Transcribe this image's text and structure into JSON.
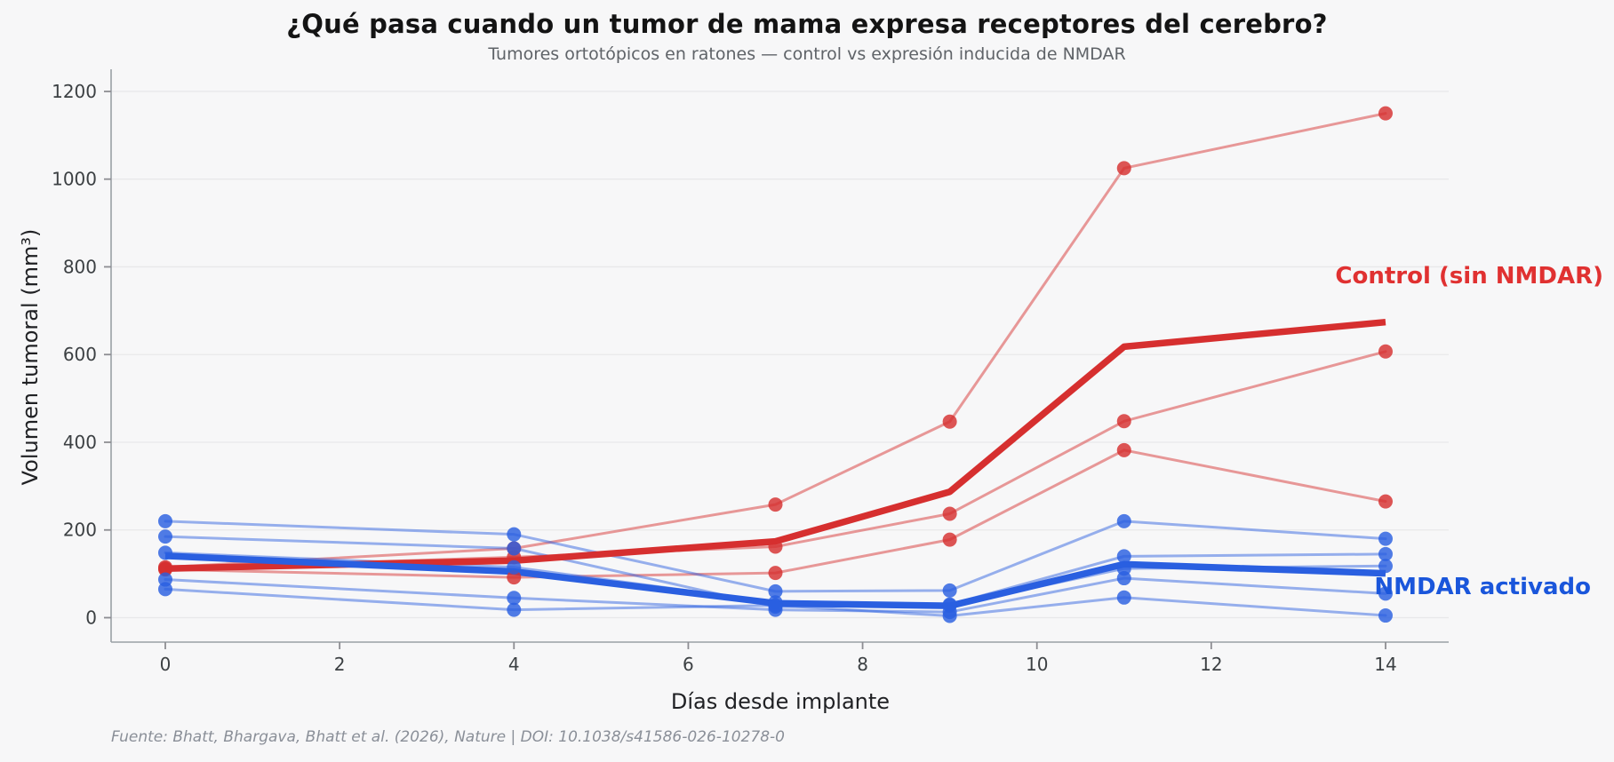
{
  "page": {
    "background": "#f7f7f8"
  },
  "header": {
    "title": "¿Qué pasa cuando un tumor de mama expresa receptores del cerebro?",
    "subtitle": "Tumores ortotópicos en ratones — control vs expresión inducida de NMDAR"
  },
  "chart_data": {
    "type": "line",
    "title": "¿Qué pasa cuando un tumor de mama expresa receptores del cerebro?",
    "subtitle": "Tumores ortotópicos en ratones — control vs expresión inducida de NMDAR",
    "xlabel": "Días desde implante",
    "ylabel": "Volumen tumoral (mm³)",
    "x_ticks": [
      0,
      2,
      4,
      6,
      8,
      10,
      12,
      14
    ],
    "y_ticks": [
      0,
      200,
      400,
      600,
      800,
      1000,
      1200
    ],
    "ylim": [
      0,
      1200
    ],
    "xlim": [
      -0.6,
      14.7
    ],
    "grid": true,
    "legend_position": "inline-annotations",
    "days": [
      0,
      4,
      7,
      9,
      11,
      14
    ],
    "groups": [
      {
        "id": "control",
        "name": "Control (sin NMDAR)",
        "color": "#d62f2f",
        "label_color": "#e03131",
        "mean": [
          112,
          130,
          174,
          287,
          618,
          674
        ],
        "mice": [
          [
            115,
            158,
            258,
            447,
            1025,
            1150
          ],
          [
            112,
            138,
            162,
            237,
            448,
            607
          ],
          [
            110,
            92,
            102,
            178,
            382,
            265
          ]
        ]
      },
      {
        "id": "nmdar",
        "name": "NMDAR activado",
        "color": "#2a5fe0",
        "label_color": "#1a56db",
        "mean": [
          141,
          105,
          33,
          27,
          122,
          101
        ],
        "mice": [
          [
            220,
            190,
            60,
            62,
            220,
            180
          ],
          [
            185,
            158,
            25,
            30,
            140,
            145
          ],
          [
            148,
            115,
            35,
            28,
            112,
            118
          ],
          [
            87,
            45,
            18,
            13,
            90,
            55
          ],
          [
            65,
            18,
            28,
            4,
            46,
            5
          ]
        ]
      }
    ]
  },
  "annotations": {
    "control_label": "Control (sin NMDAR)",
    "nmdar_label": "NMDAR activado"
  },
  "footer": {
    "source": "Fuente: Bhatt, Bhargava, Bhatt et al. (2026), Nature | DOI: 10.1038/s41586-026-10278-0"
  }
}
